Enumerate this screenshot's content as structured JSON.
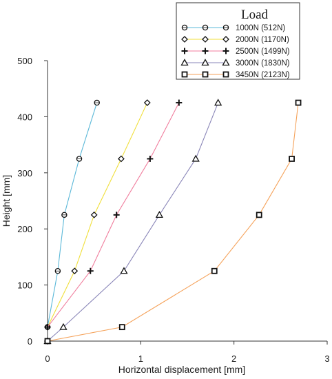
{
  "chart_data": {
    "type": "line",
    "xlabel": "Horizontal displacement [mm]",
    "ylabel": "Height [mm]",
    "xlim": [
      0,
      3
    ],
    "ylim": [
      0,
      500
    ],
    "xticks": [
      0,
      1,
      2,
      3
    ],
    "yticks": [
      0,
      100,
      200,
      300,
      400,
      500
    ],
    "grid": false,
    "legend": {
      "title": "Load",
      "placement": "top-right"
    },
    "series": [
      {
        "name": "1000N (512N)",
        "color": "#5bb8d8",
        "marker": "circle",
        "x": [
          0.0,
          0.11,
          0.18,
          0.34,
          0.53
        ],
        "y": [
          25,
          125,
          225,
          325,
          425
        ]
      },
      {
        "name": "2000N (1170N)",
        "color": "#f0df3a",
        "marker": "diamond",
        "x": [
          0.0,
          0.29,
          0.5,
          0.79,
          1.07
        ],
        "y": [
          25,
          125,
          225,
          325,
          425
        ]
      },
      {
        "name": "2500N (1499N)",
        "color": "#f07c9c",
        "marker": "plus",
        "x": [
          0.0,
          0.46,
          0.74,
          1.1,
          1.41
        ],
        "y": [
          25,
          125,
          225,
          325,
          425
        ]
      },
      {
        "name": "3000N (1830N)",
        "color": "#8a86b8",
        "marker": "triangle",
        "x": [
          0.0,
          0.17,
          0.82,
          1.2,
          1.59,
          1.83
        ],
        "y": [
          0,
          25,
          125,
          225,
          325,
          425
        ]
      },
      {
        "name": "3450N (2123N)",
        "color": "#f5a25a",
        "marker": "square",
        "x": [
          0.0,
          0.8,
          1.79,
          2.27,
          2.62,
          2.69
        ],
        "y": [
          0,
          25,
          125,
          225,
          325,
          425
        ]
      }
    ]
  }
}
